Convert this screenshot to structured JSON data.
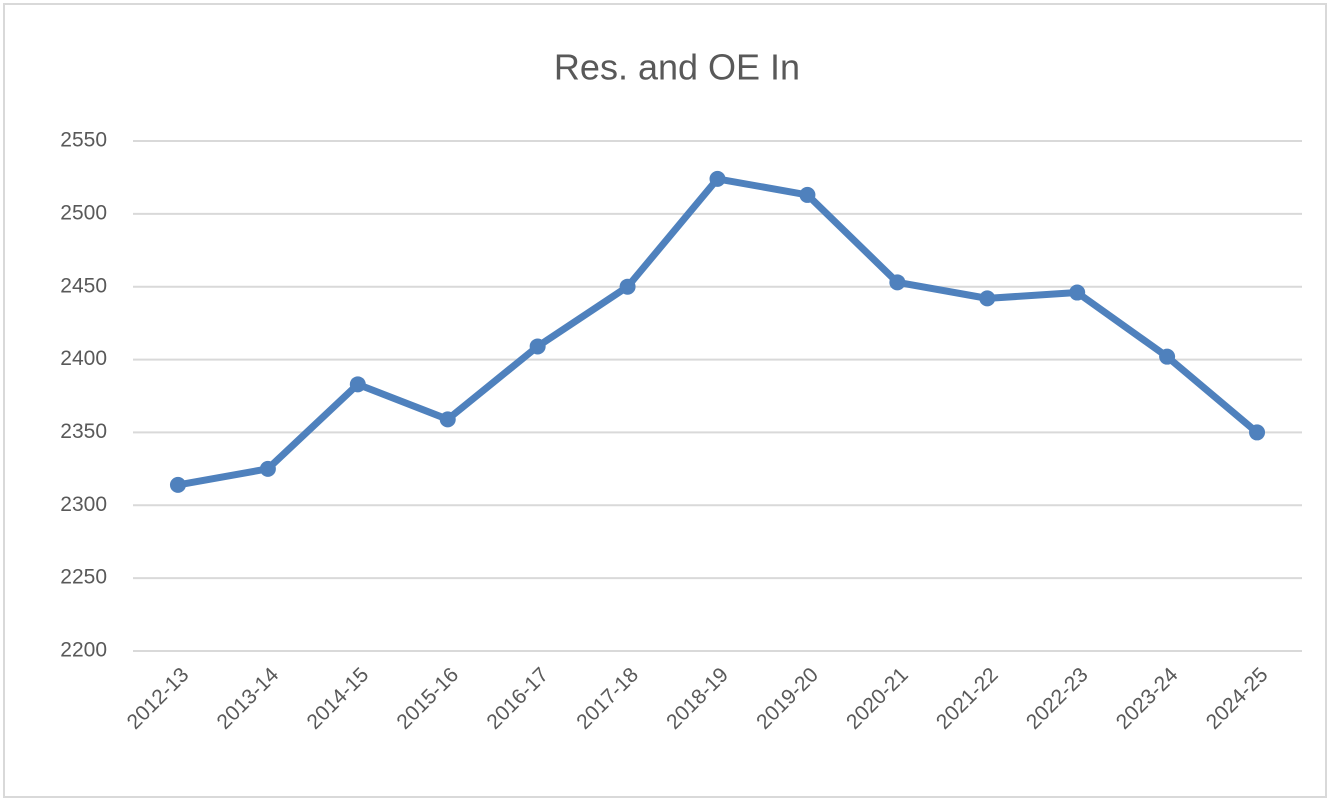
{
  "chart_data": {
    "type": "line",
    "title": "Res. and OE In",
    "categories": [
      "2012-13",
      "2013-14",
      "2014-15",
      "2015-16",
      "2016-17",
      "2017-18",
      "2018-19",
      "2019-20",
      "2020-21",
      "2021-22",
      "2022-23",
      "2023-24",
      "2024-25"
    ],
    "values": [
      2314,
      2325,
      2383,
      2359,
      2409,
      2450,
      2524,
      2513,
      2453,
      2442,
      2446,
      2402,
      2350
    ],
    "color": "#4f81bd",
    "ylim": [
      2200,
      2550
    ],
    "yticks": [
      2200,
      2250,
      2300,
      2350,
      2400,
      2450,
      2500,
      2550
    ],
    "grid": true
  }
}
